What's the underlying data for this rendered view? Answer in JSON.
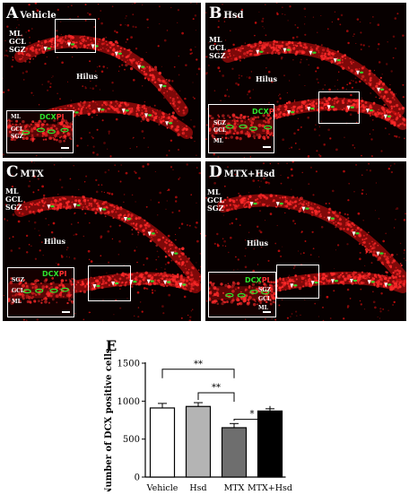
{
  "panels": {
    "a": {
      "letter": "A",
      "condition": "Vehicle",
      "inset_layers": [
        "ML",
        "GCL",
        "SGZ"
      ]
    },
    "b": {
      "letter": "B",
      "condition": "Hsd",
      "inset_layers": [
        "SGZ",
        "GCL",
        "ML"
      ]
    },
    "c": {
      "letter": "C",
      "condition": "MTX",
      "inset_layers": [
        "SGZ",
        "GCL",
        "ML"
      ]
    },
    "d": {
      "letter": "D",
      "condition": "MTX+Hsd",
      "inset_layers": [
        "SGZ",
        "GCL",
        "ML"
      ]
    },
    "e": {
      "letter": "E"
    }
  },
  "layer_labels": {
    "ml": "ML",
    "gcl": "GCL",
    "sgz": "SGZ",
    "hilus": "Hilus"
  },
  "stain": {
    "dcx": "DCX",
    "pi": "PI",
    "dcx_color": "#2ee62e",
    "pi_color": "#ff3030"
  },
  "colors": {
    "tissue_red": "#e01010",
    "background": "#070000",
    "arrow": "#ffffff"
  },
  "chart_data": {
    "type": "bar",
    "categories": [
      "Vehicle",
      "Hsd",
      "MTX",
      "MTX+Hsd"
    ],
    "values": [
      910,
      930,
      650,
      870
    ],
    "errors": [
      60,
      50,
      55,
      30
    ],
    "bar_colors": [
      "#ffffff",
      "#b4b4b4",
      "#6e6e6e",
      "#000000"
    ],
    "ylabel": "Number of DCX positive cells",
    "xlabel": "",
    "title": "",
    "ylim": [
      0,
      1500
    ],
    "yticks": [
      0,
      500,
      1000,
      1500
    ],
    "grid": false,
    "significance": [
      {
        "from": "Vehicle",
        "to": "MTX",
        "label": "**"
      },
      {
        "from": "Hsd",
        "to": "MTX",
        "label": "**"
      },
      {
        "from": "MTX",
        "to": "MTX+Hsd",
        "label": "*"
      }
    ]
  }
}
